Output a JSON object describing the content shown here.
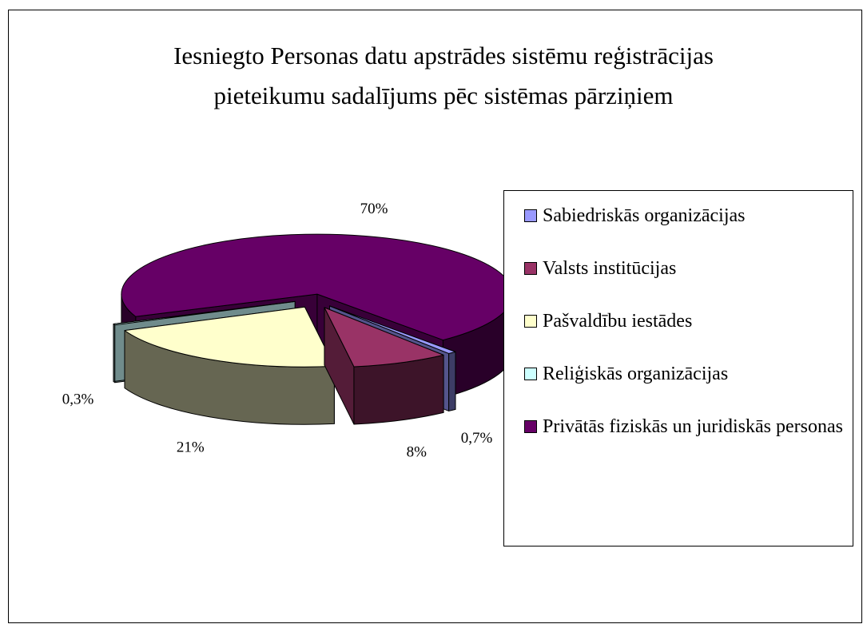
{
  "chart_data": {
    "type": "pie",
    "title": "Iesniegto Personas datu apstrādes sistēmu reģistrācijas\npieteikumu sadalījums pēc sistēmas pārziņiem",
    "categories": [
      "Sabiedriskās organizācijas",
      "Valsts institūcijas",
      "Pašvaldību iestādes",
      "Reliģiskās organizācijas",
      "Privātās fiziskās un juridiskās personas"
    ],
    "values": [
      0.7,
      8,
      21,
      0.3,
      70
    ],
    "value_labels": [
      "0,7%",
      "8%",
      "21%",
      "0,3%",
      "70%"
    ],
    "colors": [
      "#9999ff",
      "#993366",
      "#ffffcc",
      "#ccffff",
      "#660066"
    ],
    "legend": "right"
  }
}
